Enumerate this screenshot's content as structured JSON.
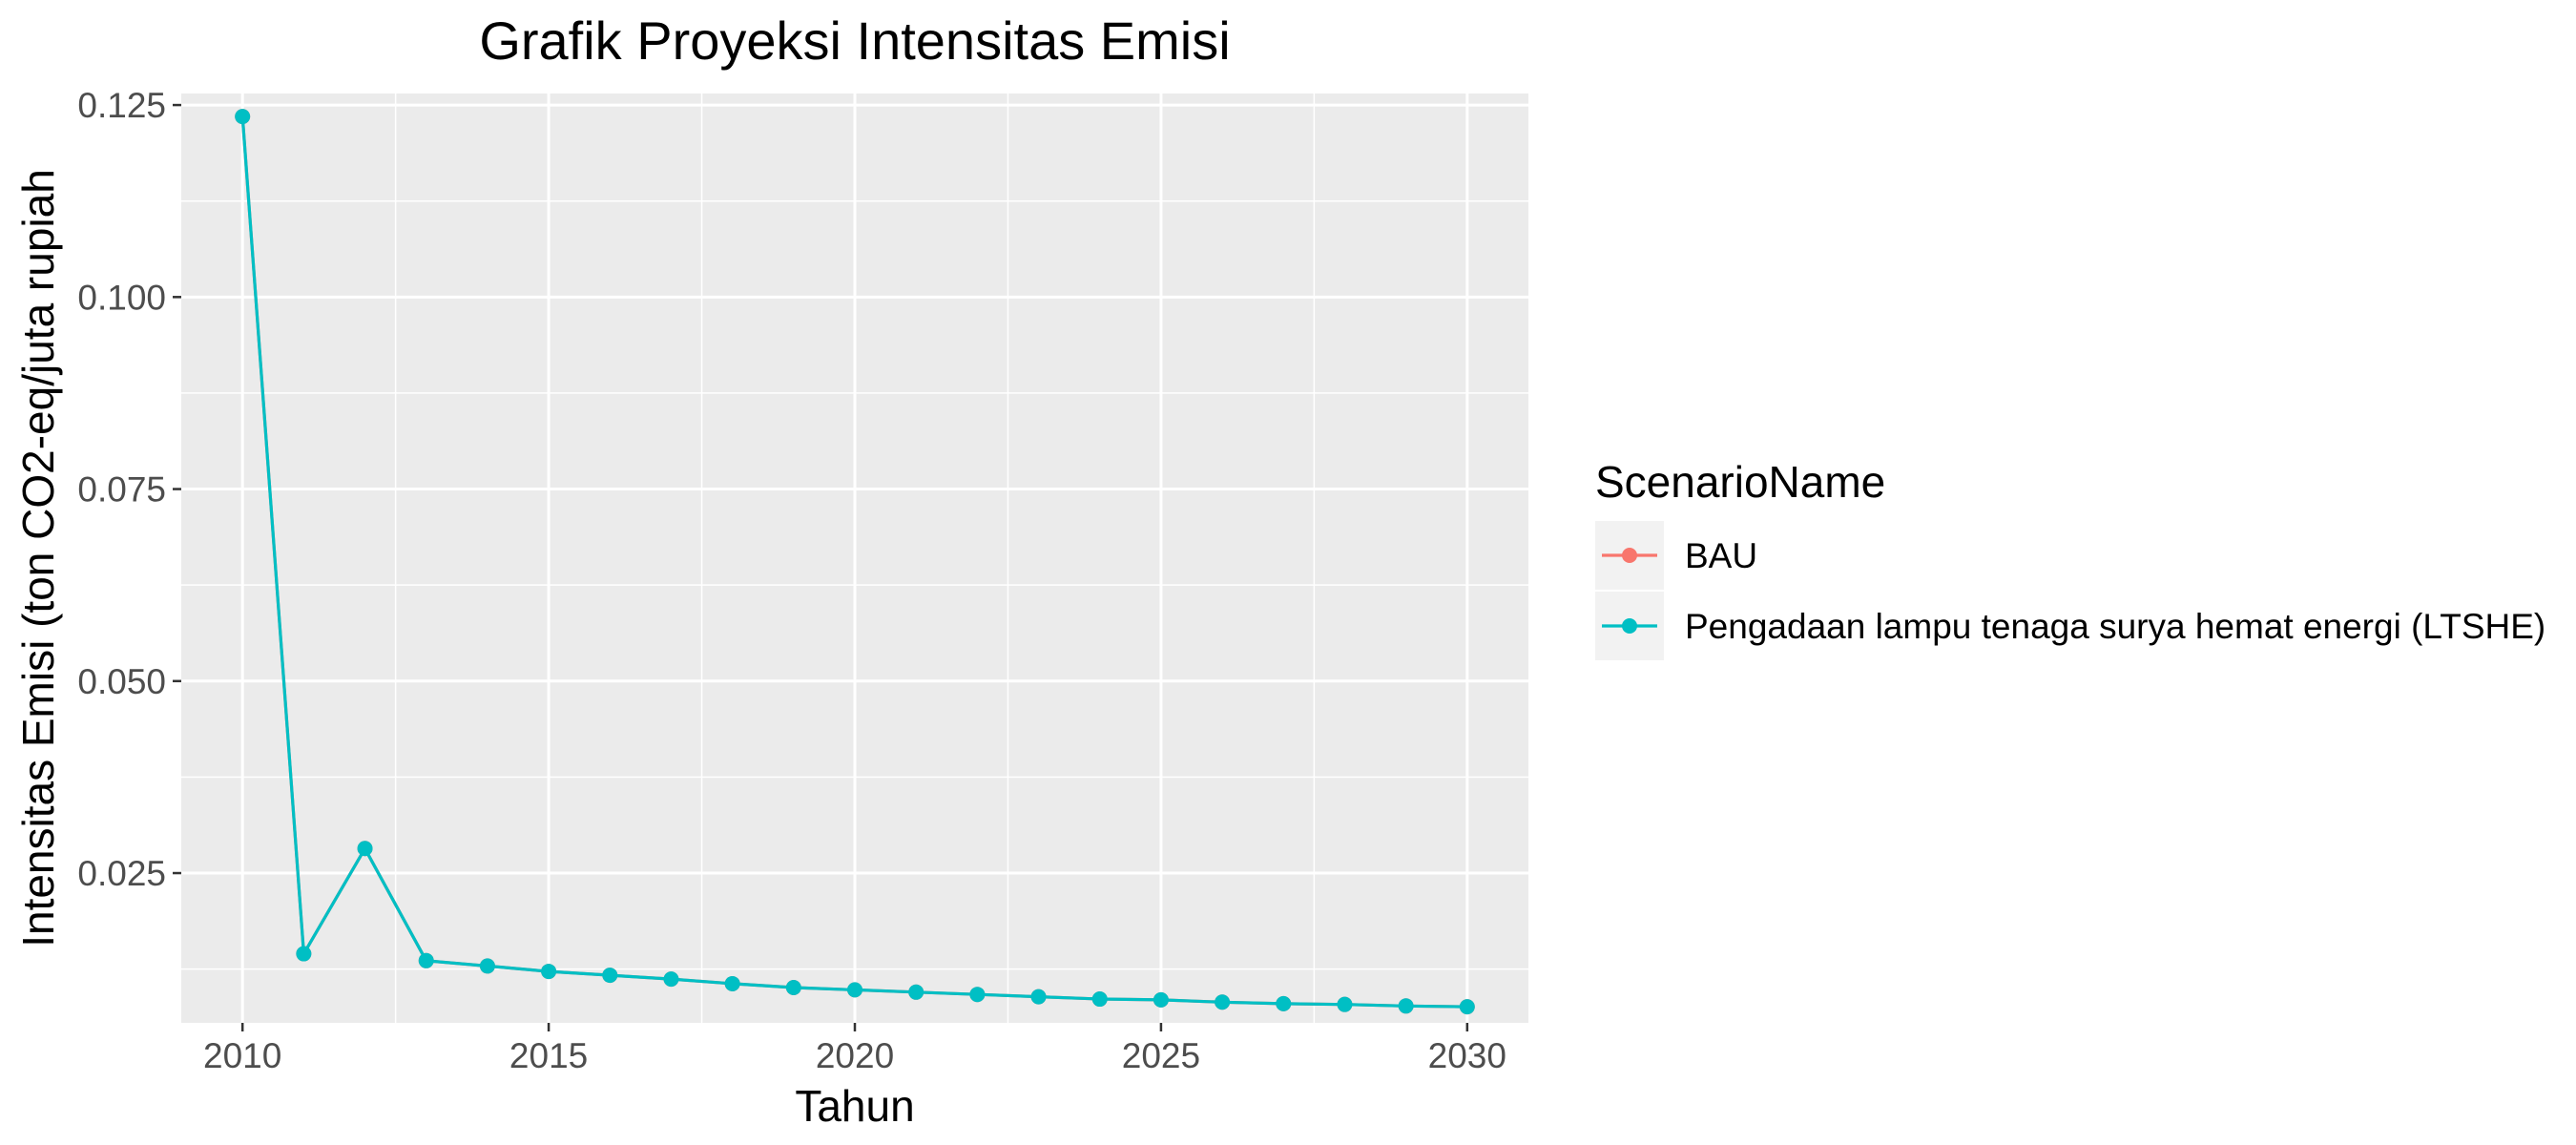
{
  "chart_data": {
    "type": "line",
    "title": "Grafik Proyeksi Intensitas Emisi",
    "xlabel": "Tahun",
    "ylabel": "Intensitas Emisi (ton CO2-eq/juta rupiah",
    "xlim": [
      2009,
      2031
    ],
    "ylim": [
      0.0055,
      0.1265
    ],
    "x_ticks": [
      2010,
      2015,
      2020,
      2025,
      2030
    ],
    "x_tick_labels": [
      "2010",
      "2015",
      "2020",
      "2025",
      "2030"
    ],
    "y_ticks": [
      0.025,
      0.05,
      0.075,
      0.1,
      0.125
    ],
    "y_tick_labels": [
      "0.025",
      "0.050",
      "0.075",
      "0.100",
      "0.125"
    ],
    "grid": true,
    "legend": {
      "title": "ScenarioName",
      "position": "right"
    },
    "x": [
      2010,
      2011,
      2012,
      2013,
      2014,
      2015,
      2016,
      2017,
      2018,
      2019,
      2020,
      2021,
      2022,
      2023,
      2024,
      2025,
      2026,
      2027,
      2028,
      2029,
      2030
    ],
    "series": [
      {
        "name": "BAU",
        "color": "#F8766D",
        "values": [
          0.1235,
          0.0145,
          0.0282,
          0.0136,
          0.0129,
          0.0122,
          0.0117,
          0.0112,
          0.0106,
          0.0101,
          0.0098,
          0.0095,
          0.0092,
          0.0089,
          0.0086,
          0.0085,
          0.0082,
          0.008,
          0.0079,
          0.0077,
          0.0076
        ]
      },
      {
        "name": "Pengadaan lampu tenaga surya hemat energi (LTSHE)",
        "color": "#00BFC4",
        "values": [
          0.1235,
          0.0145,
          0.0282,
          0.0136,
          0.0129,
          0.0122,
          0.0117,
          0.0112,
          0.0106,
          0.0101,
          0.0098,
          0.0095,
          0.0092,
          0.0089,
          0.0086,
          0.0085,
          0.0082,
          0.008,
          0.0079,
          0.0077,
          0.0076
        ]
      }
    ]
  }
}
